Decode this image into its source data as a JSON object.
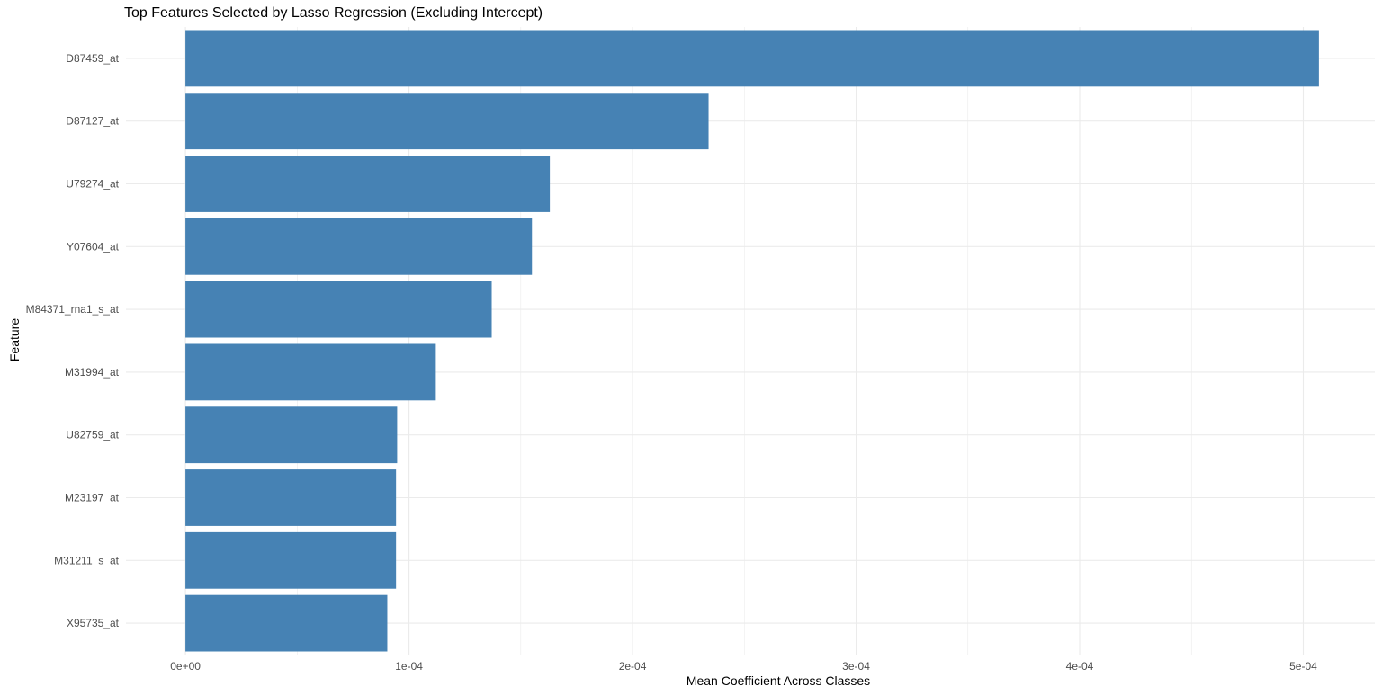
{
  "chart_data": {
    "type": "bar",
    "orientation": "horizontal",
    "title": "Top Features Selected by Lasso Regression (Excluding Intercept)",
    "xlabel": "Mean Coefficient Across Classes",
    "ylabel": "Feature",
    "categories": [
      "D87459_at",
      "D87127_at",
      "U79274_at",
      "Y07604_at",
      "M84371_rna1_s_at",
      "M31994_at",
      "U82759_at",
      "M23197_at",
      "M31211_s_at",
      "X95735_at"
    ],
    "values": [
      0.000507,
      0.000234,
      0.000163,
      0.000155,
      0.000137,
      0.000112,
      9.47e-05,
      9.42e-05,
      9.42e-05,
      9.03e-05
    ],
    "x_ticks": [
      0,
      0.0001,
      0.0002,
      0.0003,
      0.0004,
      0.0005
    ],
    "x_tick_labels": [
      "0e+00",
      "1e-04",
      "2e-04",
      "3e-04",
      "4e-04",
      "5e-04"
    ],
    "xlim": [
      -2.66e-05,
      0.000532
    ],
    "grid": true,
    "bar_color": "#4682B4",
    "grid_color": "#EBEBEB",
    "tick_label_color": "#4D4D4D"
  }
}
